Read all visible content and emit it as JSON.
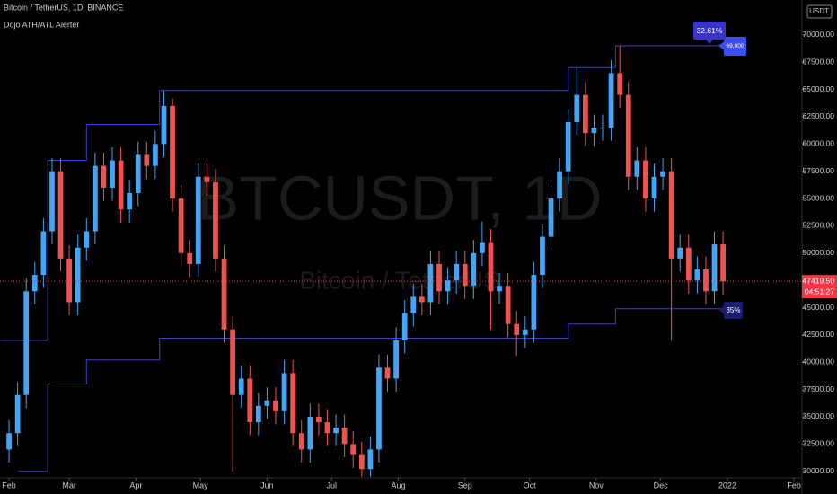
{
  "chart_data": {
    "type": "candlestick",
    "title": "Bitcoin / TetherUS, 1D, BINANCE",
    "indicator": "Dojo ATH/ATL Alerter",
    "watermark": "BTCUSDT, 1D",
    "watermark_sub": "Bitcoin / TetherUS",
    "currency": "USDT",
    "up_color": "#42a5f5",
    "down_color": "#ef5350",
    "x": [
      0,
      4,
      8,
      12,
      16,
      20,
      24,
      28,
      32,
      36,
      40,
      44,
      48,
      52,
      56,
      60,
      64,
      68,
      72,
      76,
      80,
      84,
      88,
      92,
      96,
      100,
      104,
      108,
      112,
      116,
      120,
      124,
      128,
      132,
      136,
      140,
      144,
      148,
      152,
      156,
      160,
      164,
      168,
      172,
      176,
      180,
      184,
      188,
      192,
      196,
      200,
      204,
      208,
      212,
      216,
      220,
      224,
      228,
      232,
      236,
      240,
      244,
      248,
      252,
      256,
      260,
      264,
      268,
      272,
      276,
      280,
      284,
      288,
      292,
      296,
      300,
      304,
      308,
      312,
      316,
      320,
      324,
      328,
      332
    ],
    "open": [
      32000,
      33500,
      37000,
      46500,
      48000,
      52000,
      57500,
      49500,
      45500,
      50500,
      52000,
      58000,
      56000,
      58500,
      54000,
      55500,
      59000,
      58000,
      60000,
      63500,
      55000,
      50000,
      49000,
      57000,
      56500,
      49500,
      43000,
      37000,
      38500,
      34500,
      36000,
      36500,
      35500,
      39000,
      33500,
      32000,
      35000,
      34500,
      33500,
      34000,
      32500,
      31500,
      30200,
      32000,
      39500,
      38500,
      42000,
      44500,
      46000,
      45500,
      49000,
      46500,
      47500,
      49000,
      47000,
      50000,
      51000,
      46500,
      47000,
      43500,
      42500,
      43000,
      48000,
      51500,
      55000,
      57500,
      62000,
      64500,
      61000,
      61500,
      61500,
      66500,
      64500,
      57000,
      58500,
      55000,
      57000,
      57500,
      49500,
      50500,
      47500,
      48500,
      46500,
      50800
    ],
    "high": [
      34700,
      38200,
      47700,
      49200,
      53200,
      58700,
      58700,
      50700,
      51700,
      53200,
      59200,
      59200,
      59700,
      59700,
      56700,
      60200,
      60200,
      61200,
      64900,
      64200,
      56200,
      51200,
      58200,
      58200,
      57700,
      50700,
      44200,
      39700,
      39700,
      37200,
      37700,
      37700,
      40200,
      40200,
      34700,
      36200,
      36200,
      35700,
      35200,
      35200,
      33700,
      32700,
      33200,
      40700,
      40700,
      43200,
      45700,
      47200,
      47200,
      50200,
      50200,
      48700,
      50200,
      50200,
      51200,
      52900,
      52200,
      48200,
      48200,
      44700,
      44200,
      49200,
      52700,
      56200,
      58700,
      63200,
      67000,
      65700,
      62700,
      62700,
      67700,
      69000,
      65700,
      59700,
      59700,
      58200,
      58700,
      58700,
      51700,
      51700,
      49700,
      49700,
      52000,
      52000
    ],
    "low": [
      30800,
      32300,
      35800,
      45300,
      46800,
      50800,
      48300,
      44300,
      44300,
      49300,
      50800,
      54800,
      54800,
      52800,
      52800,
      54300,
      56800,
      56800,
      58800,
      53800,
      48800,
      47800,
      47800,
      55300,
      48300,
      41800,
      30000,
      35800,
      33300,
      33300,
      34800,
      34300,
      34300,
      32300,
      30800,
      30800,
      33300,
      32300,
      32300,
      31300,
      30300,
      29500,
      29500,
      30800,
      37300,
      37300,
      40800,
      43300,
      44300,
      44300,
      45300,
      45300,
      46300,
      45800,
      45800,
      48800,
      43000,
      45300,
      42300,
      40600,
      41300,
      41800,
      46800,
      50300,
      53800,
      56300,
      60800,
      59800,
      59800,
      60300,
      60300,
      63300,
      55800,
      55800,
      53800,
      53800,
      55800,
      42000,
      48300,
      46300,
      46300,
      45300,
      45300,
      46200
    ],
    "close": [
      33500,
      37000,
      46500,
      48000,
      52000,
      57500,
      49500,
      45500,
      50500,
      52000,
      58000,
      56000,
      58500,
      54000,
      55500,
      59000,
      58000,
      60000,
      63500,
      55000,
      50000,
      49000,
      57000,
      56500,
      49500,
      43000,
      37000,
      38500,
      34500,
      36000,
      36500,
      35500,
      39000,
      33500,
      32000,
      35000,
      34500,
      33500,
      34000,
      32500,
      31500,
      30200,
      32000,
      39500,
      38500,
      42000,
      44500,
      46000,
      45500,
      49000,
      46500,
      47500,
      49000,
      47000,
      50000,
      51000,
      46500,
      47000,
      43500,
      42500,
      43000,
      48000,
      51500,
      55000,
      57500,
      62000,
      64500,
      61000,
      61500,
      61500,
      66500,
      64500,
      57000,
      58500,
      55000,
      57000,
      57500,
      49500,
      50500,
      47500,
      48500,
      46500,
      50800,
      47419.5
    ],
    "lines": [
      {
        "color": "#3f3fc8",
        "x": [
          -4,
          18,
          18,
          36,
          36,
          70,
          70,
          260,
          260,
          282,
          282,
          332
        ],
        "values": [
          42000,
          42000,
          58500,
          58500,
          61800,
          61800,
          64900,
          64900,
          67000,
          67000,
          69000,
          69000
        ]
      },
      {
        "color": "#3f3fc8",
        "x": [
          4,
          18,
          18,
          36,
          36,
          70,
          70,
          260,
          260,
          282,
          282,
          332
        ],
        "values": [
          30000,
          30000,
          38000,
          38000,
          40200,
          40200,
          42200,
          42200,
          43500,
          43500,
          44900,
          44900
        ]
      }
    ],
    "annotations": [
      {
        "text": "32.61%",
        "color": "#3a35c9"
      },
      {
        "text": "35%",
        "color": "#1c1c6e"
      }
    ],
    "ath_label": {
      "value": 69000,
      "label": "69,000",
      "color": "#3d4ff0"
    },
    "last_price": {
      "value": 47419.5,
      "label": "47419.50",
      "color": "#f23645"
    },
    "countdown": "04:51:27",
    "xlim": [
      -4.2,
      368.7
    ],
    "xticks": [
      {
        "value": 0,
        "label": "Feb"
      },
      {
        "value": 28,
        "label": "Mar"
      },
      {
        "value": 59,
        "label": "Apr"
      },
      {
        "value": 89,
        "label": "May"
      },
      {
        "value": 120,
        "label": "Jun"
      },
      {
        "value": 150,
        "label": "Jul"
      },
      {
        "value": 181,
        "label": "Aug"
      },
      {
        "value": 212,
        "label": "Sep"
      },
      {
        "value": 242,
        "label": "Oct"
      },
      {
        "value": 273,
        "label": "Nov"
      },
      {
        "value": 303,
        "label": "Dec"
      },
      {
        "value": 334,
        "label": "2022"
      },
      {
        "value": 365,
        "label": "Feb"
      }
    ],
    "ylim": [
      29400,
      73200
    ],
    "yticks": [
      {
        "value": 30000,
        "label": "30000.00"
      },
      {
        "value": 32500,
        "label": "32500.00"
      },
      {
        "value": 35000,
        "label": "35000.00"
      },
      {
        "value": 37500,
        "label": "37500.00"
      },
      {
        "value": 40000,
        "label": "40000.00"
      },
      {
        "value": 42500,
        "label": "42500.00"
      },
      {
        "value": 45000,
        "label": "45000.00"
      },
      {
        "value": 47500,
        "label": "47500.00"
      },
      {
        "value": 50000,
        "label": "50000.00"
      },
      {
        "value": 52500,
        "label": "52500.00"
      },
      {
        "value": 55000,
        "label": "55000.00"
      },
      {
        "value": 57500,
        "label": "57500.00"
      },
      {
        "value": 60000,
        "label": "60000.00"
      },
      {
        "value": 62500,
        "label": "62500.00"
      },
      {
        "value": 65000,
        "label": "65000.00"
      },
      {
        "value": 67500,
        "label": "67500.00"
      },
      {
        "value": 70000,
        "label": "70000.00"
      }
    ]
  }
}
